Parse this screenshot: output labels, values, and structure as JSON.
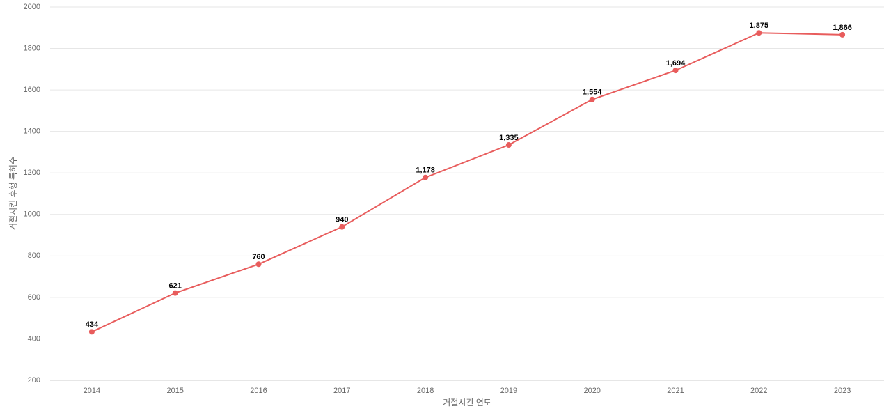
{
  "chart_data": {
    "type": "line",
    "x_label": "거절시킨 연도",
    "y_label": "거절시킨 후행 특허수",
    "categories": [
      "2014",
      "2015",
      "2016",
      "2017",
      "2018",
      "2019",
      "2020",
      "2021",
      "2022",
      "2023"
    ],
    "values": [
      434,
      621,
      760,
      940,
      1178,
      1335,
      1554,
      1694,
      1875,
      1866
    ],
    "value_labels": [
      "434",
      "621",
      "760",
      "940",
      "1,178",
      "1,335",
      "1,554",
      "1,694",
      "1,875",
      "1,866"
    ],
    "color": "#e85c5c",
    "ylim": [
      200,
      2000
    ],
    "yticks": [
      200,
      400,
      600,
      800,
      1000,
      1200,
      1400,
      1600,
      1800,
      2000
    ],
    "grid": true
  }
}
